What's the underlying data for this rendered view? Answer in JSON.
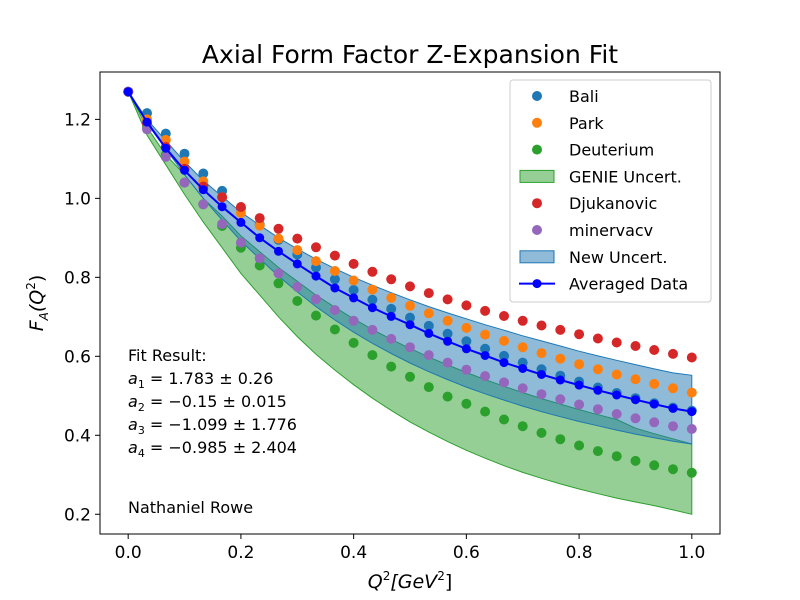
{
  "chart_data": {
    "type": "scatter",
    "title": "Axial Form Factor Z-Expansion Fit",
    "xlabel_base": "Q",
    "xlabel_sup": "2",
    "xlabel_unit_open": "[GeV",
    "xlabel_unit_sup": "2",
    "xlabel_unit_close": "]",
    "ylabel_base": "F",
    "ylabel_sub": "A",
    "ylabel_arg_open": "(Q",
    "ylabel_arg_sup": "2",
    "ylabel_arg_close": ")",
    "xlim": [
      -0.05,
      1.05
    ],
    "ylim": [
      0.15,
      1.32
    ],
    "xticks": [
      0.0,
      0.2,
      0.4,
      0.6,
      0.8,
      1.0
    ],
    "xtick_labels": [
      "0.0",
      "0.2",
      "0.4",
      "0.6",
      "0.8",
      "1.0"
    ],
    "yticks": [
      0.2,
      0.4,
      0.6,
      0.8,
      1.0,
      1.2
    ],
    "ytick_labels": [
      "0.2",
      "0.4",
      "0.6",
      "0.8",
      "1.0",
      "1.2"
    ],
    "grid": false,
    "legend_position": "top-right",
    "x": [
      0.0,
      0.0333,
      0.0667,
      0.1,
      0.1333,
      0.1667,
      0.2,
      0.2333,
      0.2667,
      0.3,
      0.3333,
      0.3667,
      0.4,
      0.4333,
      0.4667,
      0.5,
      0.5333,
      0.5667,
      0.6,
      0.6333,
      0.6667,
      0.7,
      0.7333,
      0.7667,
      0.8,
      0.8333,
      0.8667,
      0.9,
      0.9333,
      0.9667,
      1.0
    ],
    "series": [
      {
        "name": "Bali",
        "kind": "points",
        "color": "#1f77b4",
        "values": [
          1.27,
          1.216,
          1.164,
          1.113,
          1.063,
          1.019,
          0.975,
          0.934,
          0.895,
          0.858,
          0.825,
          0.795,
          0.768,
          0.743,
          0.72,
          0.698,
          0.677,
          0.657,
          0.638,
          0.619,
          0.601,
          0.584,
          0.567,
          0.551,
          0.536,
          0.521,
          0.507,
          0.494,
          0.481,
          0.47,
          0.462
        ]
      },
      {
        "name": "Park",
        "kind": "points",
        "color": "#ff7f0e",
        "values": [
          1.27,
          1.2,
          1.148,
          1.093,
          1.043,
          1.003,
          0.963,
          0.931,
          0.898,
          0.869,
          0.841,
          0.816,
          0.792,
          0.769,
          0.748,
          0.728,
          0.709,
          0.69,
          0.672,
          0.655,
          0.639,
          0.623,
          0.608,
          0.594,
          0.58,
          0.567,
          0.554,
          0.542,
          0.53,
          0.519,
          0.508
        ]
      },
      {
        "name": "Deuterium",
        "kind": "points",
        "color": "#2ca02c",
        "values": [
          1.27,
          1.18,
          1.11,
          1.04,
          0.985,
          0.93,
          0.875,
          0.83,
          0.785,
          0.74,
          0.703,
          0.668,
          0.634,
          0.603,
          0.574,
          0.548,
          0.522,
          0.498,
          0.48,
          0.46,
          0.44,
          0.423,
          0.406,
          0.39,
          0.374,
          0.36,
          0.347,
          0.335,
          0.324,
          0.314,
          0.305
        ]
      },
      {
        "name": "GENIE Uncert.",
        "kind": "band",
        "color": "#2ca02c",
        "upper": [
          1.27,
          1.18,
          1.11,
          1.06,
          1.0,
          0.955,
          0.905,
          0.865,
          0.825,
          0.79,
          0.755,
          0.724,
          0.695,
          0.668,
          0.643,
          0.62,
          0.598,
          0.578,
          0.559,
          0.541,
          0.524,
          0.508,
          0.493,
          0.479,
          0.465,
          0.452,
          0.44,
          0.418,
          0.404,
          0.391,
          0.378
        ],
        "lower": [
          1.27,
          1.16,
          1.085,
          1.01,
          0.94,
          0.875,
          0.81,
          0.755,
          0.7,
          0.65,
          0.605,
          0.565,
          0.528,
          0.494,
          0.463,
          0.434,
          0.408,
          0.384,
          0.362,
          0.342,
          0.323,
          0.306,
          0.291,
          0.277,
          0.264,
          0.252,
          0.241,
          0.231,
          0.222,
          0.211,
          0.2
        ]
      },
      {
        "name": "Djukanovic",
        "kind": "points",
        "color": "#d62728",
        "values": [
          1.27,
          1.19,
          1.13,
          1.075,
          1.03,
          1.003,
          0.978,
          0.95,
          0.923,
          0.898,
          0.876,
          0.855,
          0.834,
          0.814,
          0.795,
          0.777,
          0.76,
          0.744,
          0.729,
          0.715,
          0.702,
          0.69,
          0.678,
          0.667,
          0.656,
          0.645,
          0.635,
          0.626,
          0.616,
          0.606,
          0.597
        ]
      },
      {
        "name": "minervacv",
        "kind": "points",
        "color": "#9467bd",
        "values": [
          1.27,
          1.175,
          1.105,
          1.04,
          0.985,
          0.935,
          0.888,
          0.848,
          0.81,
          0.776,
          0.745,
          0.717,
          0.69,
          0.667,
          0.644,
          0.623,
          0.603,
          0.584,
          0.566,
          0.55,
          0.534,
          0.519,
          0.504,
          0.491,
          0.478,
          0.466,
          0.454,
          0.443,
          0.433,
          0.423,
          0.416
        ]
      },
      {
        "name": "New Uncert.",
        "kind": "band",
        "color": "#1f77b4",
        "upper": [
          1.27,
          1.2,
          1.146,
          1.093,
          1.045,
          1.005,
          0.965,
          0.932,
          0.9,
          0.872,
          0.846,
          0.822,
          0.8,
          0.78,
          0.761,
          0.743,
          0.726,
          0.71,
          0.695,
          0.68,
          0.666,
          0.652,
          0.639,
          0.626,
          0.613,
          0.601,
          0.59,
          0.579,
          0.568,
          0.558,
          0.552
        ],
        "lower": [
          1.27,
          1.19,
          1.125,
          1.06,
          1.0,
          0.945,
          0.892,
          0.847,
          0.803,
          0.763,
          0.726,
          0.692,
          0.661,
          0.633,
          0.607,
          0.583,
          0.561,
          0.541,
          0.522,
          0.505,
          0.489,
          0.474,
          0.46,
          0.447,
          0.435,
          0.424,
          0.413,
          0.403,
          0.394,
          0.385,
          0.378
        ]
      },
      {
        "name": "Averaged Data",
        "kind": "line",
        "color": "#0000ff",
        "values": [
          1.27,
          1.193,
          1.127,
          1.071,
          1.022,
          0.979,
          0.939,
          0.9,
          0.866,
          0.834,
          0.803,
          0.773,
          0.748,
          0.723,
          0.701,
          0.68,
          0.658,
          0.638,
          0.619,
          0.602,
          0.584,
          0.569,
          0.554,
          0.54,
          0.527,
          0.514,
          0.502,
          0.49,
          0.479,
          0.468,
          0.46
        ]
      }
    ],
    "annotations": [
      "Fit Result:",
      "a_1 = 1.783 ± 0.26",
      "a_2 = −0.15 ± 0.015",
      "a_3 = −1.099 ± 1.776",
      "a_4 = −0.985 ± 2.404"
    ],
    "fit_lines": [
      {
        "sym": "a",
        "sub": "1",
        "eq": " = 1.783 ± 0.26"
      },
      {
        "sym": "a",
        "sub": "2",
        "eq": " = −0.15 ± 0.015"
      },
      {
        "sym": "a",
        "sub": "3",
        "eq": " = −1.099 ± 1.776"
      },
      {
        "sym": "a",
        "sub": "4",
        "eq": " = −0.985 ± 2.404"
      }
    ],
    "fit_header": "Fit Result:",
    "author": "Nathaniel Rowe"
  }
}
